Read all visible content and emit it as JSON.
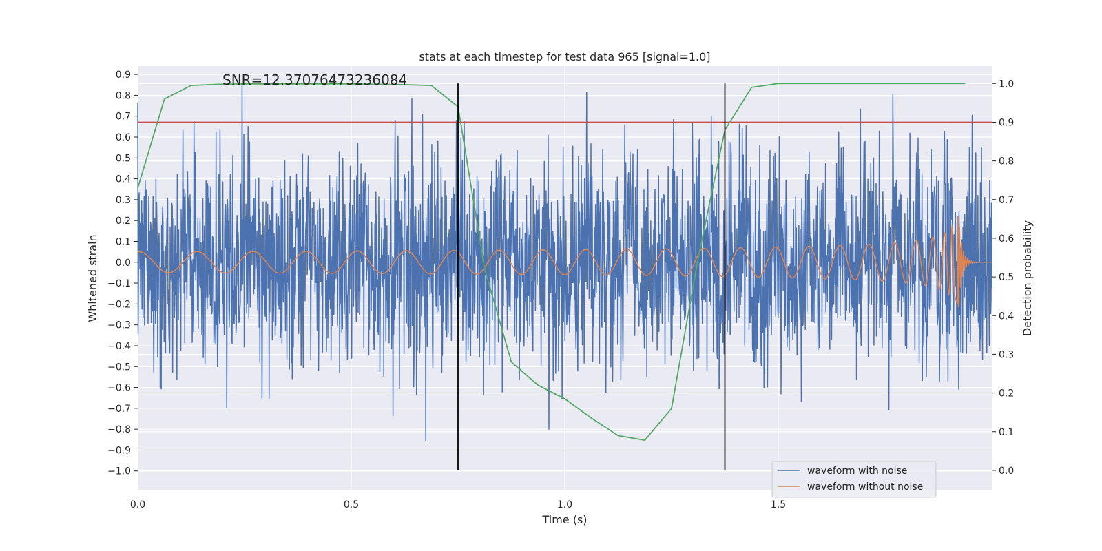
{
  "chart_data": {
    "type": "line",
    "title": "stats at each timestep for test data 965 [signal=1.0]",
    "xlabel": "Time (s)",
    "ylabel_left": "Whitened strain",
    "ylabel_right": "Detection probability",
    "annotation": "SNR=12.37076473236084",
    "xlim": [
      0.0,
      2.0
    ],
    "ylim_left": [
      -1.09,
      0.94
    ],
    "ylim_right": [
      -0.05,
      1.045
    ],
    "x_ticks": [
      0.0,
      0.5,
      1.0,
      1.5
    ],
    "x_tick_labels": [
      "0.0",
      "0.5",
      "1.0",
      "1.5"
    ],
    "y_left_ticks": [
      0.9,
      0.8,
      0.7,
      0.6,
      0.5,
      0.4,
      0.3,
      0.2,
      0.1,
      0.0,
      -0.1,
      -0.2,
      -0.3,
      -0.4,
      -0.5,
      -0.6,
      -0.7,
      -0.8,
      -0.9,
      -1.0
    ],
    "y_left_tick_labels": [
      "0.9",
      "0.8",
      "0.7",
      "0.6",
      "0.5",
      "0.4",
      "0.3",
      "0.2",
      "0.1",
      "0.0",
      "−0.1",
      "−0.2",
      "−0.3",
      "−0.4",
      "−0.5",
      "−0.6",
      "−0.7",
      "−0.8",
      "−0.9",
      "−1.0"
    ],
    "y_right_ticks": [
      1.0,
      0.9,
      0.8,
      0.7,
      0.6,
      0.5,
      0.4,
      0.3,
      0.2,
      0.1,
      0.0
    ],
    "y_right_tick_labels": [
      "1.0",
      "0.9",
      "0.8",
      "0.7",
      "0.6",
      "0.5",
      "0.4",
      "0.3",
      "0.2",
      "0.1",
      "0.0"
    ],
    "grid": true,
    "legend_position": "lower-right",
    "series": [
      {
        "name": "waveform with noise",
        "axis": "left",
        "color": "#4c72b0",
        "description": "noisy whitened strain, amplitude roughly within -1.0 to 0.85"
      },
      {
        "name": "waveform without noise",
        "axis": "left",
        "color": "#dd8452",
        "description": "chirp signal, amplitude ~0.05 growing to ~0.3, merger near t=1.92 s then ringdown",
        "merger_time": 1.92
      },
      {
        "axis": "right",
        "color": "#55a868",
        "x": [
          0.0,
          0.0625,
          0.125,
          0.1875,
          0.25,
          0.3125,
          0.375,
          0.4375,
          0.5,
          0.5625,
          0.625,
          0.6875,
          0.75,
          0.8125,
          0.875,
          0.9375,
          1.0,
          1.0625,
          1.125,
          1.1875,
          1.25,
          1.3125,
          1.375,
          1.4375,
          1.5,
          1.5625,
          1.625,
          1.6875,
          1.75,
          1.8125,
          1.875,
          1.9375
        ],
        "values": [
          0.73,
          0.96,
          0.995,
          0.998,
          0.999,
          0.999,
          0.999,
          0.999,
          0.999,
          0.998,
          0.997,
          0.995,
          0.94,
          0.52,
          0.28,
          0.22,
          0.185,
          0.135,
          0.09,
          0.078,
          0.16,
          0.55,
          0.88,
          0.99,
          1.0,
          1.0,
          1.0,
          1.0,
          1.0,
          1.0,
          1.0,
          1.0
        ]
      }
    ],
    "threshold": {
      "axis": "right",
      "value": 0.9,
      "color": "#c44e52"
    },
    "vertical_lines": {
      "x": [
        0.75,
        1.375
      ],
      "color": "#000000"
    }
  }
}
